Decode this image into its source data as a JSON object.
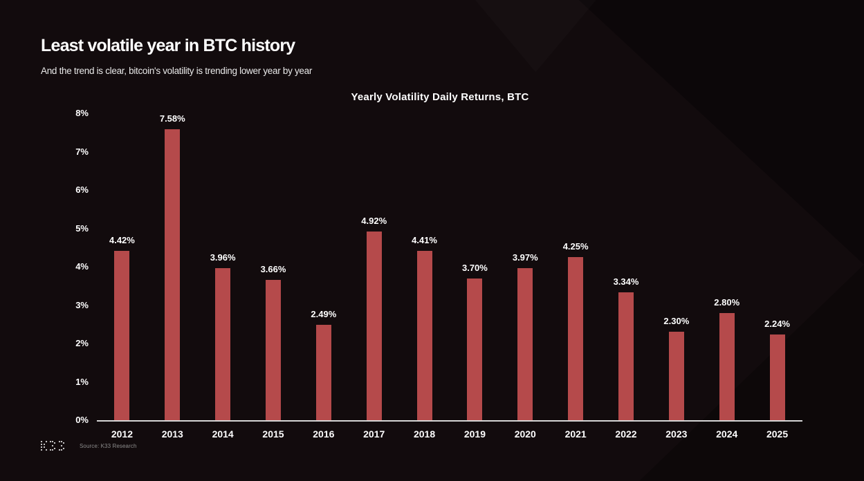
{
  "page": {
    "title": "Least volatile year in BTC history",
    "subtitle": "And the trend is clear, bitcoin's volatility is trending lower year by year"
  },
  "footer": {
    "source": "Source: K33 Research"
  },
  "colors": {
    "background": "#120b0d",
    "bar": "#b54a4b",
    "text": "#ffffff",
    "axis_line": "#d6d6d6",
    "muted_text": "#8d8d8d"
  },
  "chart_data": {
    "type": "bar",
    "title": "Yearly Volatility Daily Returns, BTC",
    "categories": [
      "2012",
      "2013",
      "2014",
      "2015",
      "2016",
      "2017",
      "2018",
      "2019",
      "2020",
      "2021",
      "2022",
      "2023",
      "2024",
      "2025"
    ],
    "values": [
      4.42,
      7.58,
      3.96,
      3.66,
      2.49,
      4.92,
      4.41,
      3.7,
      3.97,
      4.25,
      3.34,
      2.3,
      2.8,
      2.24
    ],
    "value_labels": [
      "4.42%",
      "7.58%",
      "3.96%",
      "3.66%",
      "2.49%",
      "4.92%",
      "4.41%",
      "3.70%",
      "3.97%",
      "4.25%",
      "3.34%",
      "2.30%",
      "2.80%",
      "2.24%"
    ],
    "xlabel": "",
    "ylabel": "",
    "ylim": [
      0,
      8
    ],
    "y_ticks": [
      "0%",
      "1%",
      "2%",
      "3%",
      "4%",
      "5%",
      "6%",
      "7%",
      "8%"
    ],
    "grid": false,
    "legend": "none",
    "bar_color": "#b54a4b"
  }
}
